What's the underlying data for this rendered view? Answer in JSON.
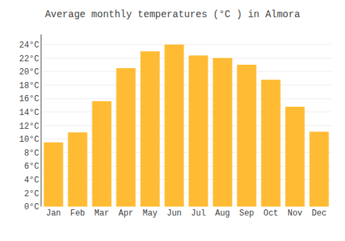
{
  "chart_data": {
    "type": "bar",
    "title": "Average monthly temperatures (°C ) in Almora",
    "categories": [
      "Jan",
      "Feb",
      "Mar",
      "Apr",
      "May",
      "Jun",
      "Jul",
      "Aug",
      "Sep",
      "Oct",
      "Nov",
      "Dec"
    ],
    "values": [
      9.5,
      11.0,
      15.6,
      20.5,
      23.0,
      24.0,
      22.4,
      22.0,
      21.0,
      18.8,
      14.8,
      11.1
    ],
    "color": "#FFBB33",
    "ylim": [
      0,
      25.5
    ],
    "yticks": [
      {
        "value": 0,
        "label": "0°C"
      },
      {
        "value": 2,
        "label": "2°C"
      },
      {
        "value": 4,
        "label": "4°C"
      },
      {
        "value": 6,
        "label": "6°C"
      },
      {
        "value": 8,
        "label": "8°C"
      },
      {
        "value": 10,
        "label": "10°C"
      },
      {
        "value": 12,
        "label": "12°C"
      },
      {
        "value": 14,
        "label": "14°C"
      },
      {
        "value": 16,
        "label": "16°C"
      },
      {
        "value": 18,
        "label": "18°C"
      },
      {
        "value": 20,
        "label": "20°C"
      },
      {
        "value": 22,
        "label": "22°C"
      },
      {
        "value": 24,
        "label": "24°C"
      }
    ],
    "grid": true
  }
}
